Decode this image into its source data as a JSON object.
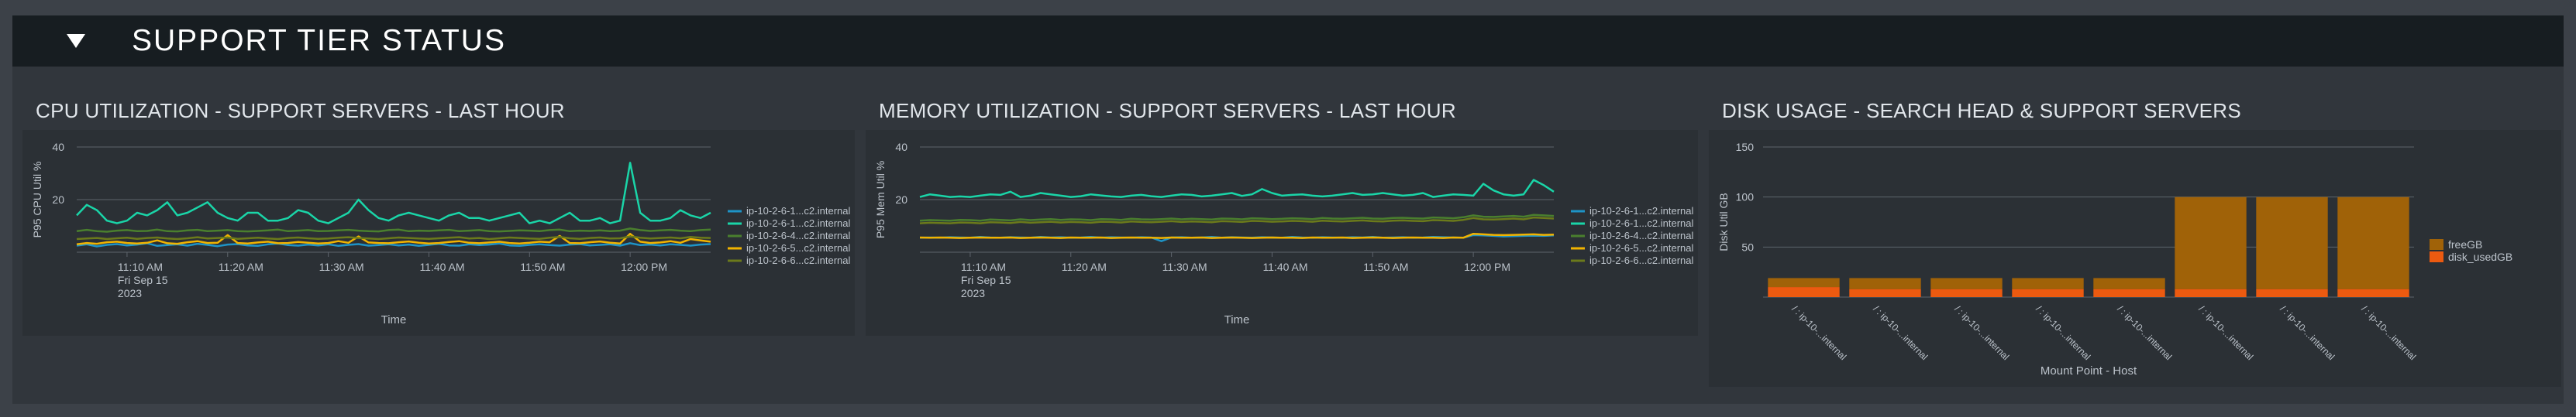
{
  "section": {
    "title": "SUPPORT TIER STATUS",
    "toggle_icon": "triangle-down-icon"
  },
  "panels": [
    {
      "title": "CPU UTILIZATION - SUPPORT SERVERS - LAST HOUR",
      "chart_data": {
        "type": "line",
        "title": "",
        "xlabel": "Time",
        "ylabel": "P95 CPU Util %",
        "ylim": [
          0,
          40
        ],
        "yticks": [
          20,
          40
        ],
        "grid": true,
        "legend": "right",
        "x_range": [
          "11:05",
          "12:08"
        ],
        "x_ticks": [
          {
            "t": "11:10",
            "label": "11:10 AM",
            "sub1": "Fri Sep 15",
            "sub2": "2023"
          },
          {
            "t": "11:20",
            "label": "11:20 AM"
          },
          {
            "t": "11:30",
            "label": "11:30 AM"
          },
          {
            "t": "11:40",
            "label": "11:40 AM"
          },
          {
            "t": "11:50",
            "label": "11:50 AM"
          },
          {
            "t": "12:00",
            "label": "12:00 PM"
          }
        ],
        "series": [
          {
            "name": "ip-10-2-6-1...c2.internal",
            "color": "#1e93c6",
            "values": [
              2.5,
              3.0,
              2.2,
              2.8,
              3.1,
              2.6,
              2.9,
              3.4,
              2.4,
              2.7,
              3.0,
              2.5,
              3.2,
              2.8,
              2.3,
              2.9,
              3.1,
              2.6,
              2.4,
              3.0,
              3.3,
              2.7,
              2.5,
              2.9,
              2.6,
              3.0,
              2.4,
              2.8,
              3.1,
              2.5,
              2.7,
              3.0,
              2.6,
              2.9,
              2.4,
              2.8,
              3.2,
              2.6,
              2.5,
              3.0,
              2.7,
              2.9,
              3.3,
              2.6,
              2.4,
              2.8,
              3.0,
              2.7,
              2.5,
              2.9,
              3.1,
              2.6,
              2.8,
              3.0,
              2.5,
              3.4,
              2.7,
              2.9,
              2.6,
              3.0,
              2.8,
              2.5,
              2.9,
              3.1
            ]
          },
          {
            "name": "ip-10-2-6-1...c2.internal",
            "color": "#1ad5a8",
            "values": [
              14,
              18,
              16,
              12,
              11,
              12,
              15,
              14,
              16,
              19,
              14,
              15,
              17,
              19,
              15,
              13,
              12,
              15,
              15,
              12,
              12,
              13,
              16,
              15,
              12,
              11,
              13,
              15,
              20,
              16,
              13,
              12,
              14,
              15,
              14,
              13,
              12,
              14,
              15,
              13,
              13,
              12,
              13,
              14,
              15,
              11,
              12,
              11,
              13,
              15,
              12,
              12,
              13,
              11,
              12,
              34,
              15,
              12,
              12,
              13,
              16,
              14,
              13,
              15
            ]
          },
          {
            "name": "ip-10-2-6-4...c2.internal",
            "color": "#4a7f2e",
            "values": [
              8,
              8.5,
              8,
              7.8,
              8.2,
              8.4,
              8,
              8.1,
              8.6,
              8,
              7.9,
              8.3,
              8.5,
              8,
              8.2,
              8.4,
              8,
              7.9,
              8.1,
              8.3,
              8.6,
              8,
              8.2,
              8.4,
              8,
              8.1,
              8.3,
              8.5,
              8.2,
              8,
              7.9,
              8.4,
              8.6,
              8,
              8.2,
              8.1,
              8.3,
              8.5,
              8,
              8.2,
              8.4,
              8,
              7.9,
              8.1,
              8.3,
              8.2,
              8,
              8.4,
              8.6,
              8,
              8.2,
              8.1,
              8.3,
              8,
              8.2,
              9,
              8.4,
              8.1,
              8.3,
              8.5,
              8.2,
              8,
              8.4,
              8.6
            ]
          },
          {
            "name": "ip-10-2-6-5...c2.internal",
            "color": "#f1b300",
            "values": [
              3,
              3.5,
              3.2,
              3.8,
              4,
              3.5,
              3.3,
              3.6,
              4.5,
              3.4,
              3.2,
              3.8,
              4.2,
              3.5,
              3.6,
              6.5,
              3.5,
              3.3,
              3.7,
              4.0,
              3.4,
              3.5,
              3.9,
              3.6,
              3.3,
              3.5,
              4.2,
              3.6,
              6.0,
              3.7,
              3.5,
              3.4,
              3.8,
              4.1,
              3.6,
              3.3,
              3.5,
              3.9,
              4.2,
              3.6,
              3.4,
              3.7,
              4.0,
              3.5,
              3.3,
              3.6,
              4.0,
              3.8,
              6.2,
              3.5,
              3.4,
              3.8,
              4.1,
              3.6,
              3.3,
              7.0,
              4.0,
              3.5,
              3.7,
              4.2,
              3.6,
              5.0,
              4.5,
              4.0
            ]
          },
          {
            "name": "ip-10-2-6-6...c2.internal",
            "color": "#6b7a1b",
            "values": [
              5,
              5.2,
              5.4,
              5,
              5.3,
              5.5,
              5.1,
              5.4,
              5.6,
              5.2,
              5,
              5.3,
              5.7,
              5.2,
              5.4,
              5.6,
              5.1,
              5.3,
              5.5,
              5.2,
              5.0,
              5.4,
              5.6,
              5.3,
              5.1,
              5.2,
              5.5,
              5.7,
              5.4,
              5.2,
              5.0,
              5.3,
              5.6,
              5.4,
              5.2,
              5.1,
              5.3,
              5.5,
              5.7,
              5.2,
              5.4,
              5.0,
              5.3,
              5.6,
              5.4,
              5.2,
              5.1,
              5.5,
              5.8,
              5.3,
              5.1,
              5.4,
              5.6,
              5.2,
              5.3,
              6.0,
              5.5,
              5.2,
              5.4,
              5.6,
              5.3,
              5.8,
              5.5,
              5.4
            ]
          }
        ]
      }
    },
    {
      "title": "MEMORY UTILIZATION - SUPPORT SERVERS - LAST HOUR",
      "chart_data": {
        "type": "line",
        "title": "",
        "xlabel": "Time",
        "ylabel": "P95 Mem Util %",
        "ylim": [
          0,
          40
        ],
        "yticks": [
          20,
          40
        ],
        "grid": true,
        "legend": "right",
        "x_range": [
          "11:05",
          "12:08"
        ],
        "x_ticks": [
          {
            "t": "11:10",
            "label": "11:10 AM",
            "sub1": "Fri Sep 15",
            "sub2": "2023"
          },
          {
            "t": "11:20",
            "label": "11:20 AM"
          },
          {
            "t": "11:30",
            "label": "11:30 AM"
          },
          {
            "t": "11:40",
            "label": "11:40 AM"
          },
          {
            "t": "11:50",
            "label": "11:50 AM"
          },
          {
            "t": "12:00",
            "label": "12:00 PM"
          }
        ],
        "series": [
          {
            "name": "ip-10-2-6-1...c2.internal",
            "color": "#1e93c6",
            "values": [
              5.5,
              5.6,
              5.5,
              5.7,
              5.6,
              5.5,
              5.8,
              5.6,
              5.5,
              5.7,
              5.6,
              5.5,
              5.8,
              5.6,
              5.7,
              5.5,
              5.6,
              5.8,
              5.5,
              5.7,
              5.6,
              5.5,
              5.7,
              5.6,
              4.2,
              5.6,
              5.7,
              5.5,
              5.6,
              5.8,
              5.5,
              5.7,
              5.6,
              5.5,
              5.7,
              5.6,
              5.5,
              5.8,
              5.6,
              5.5,
              5.7,
              5.6,
              5.5,
              5.7,
              5.6,
              5.8,
              5.5,
              5.6,
              5.7,
              5.5,
              5.6,
              5.8,
              5.7,
              5.6,
              5.5,
              6.5,
              6.4,
              6.2,
              6.0,
              6.1,
              6.2,
              6.3,
              6.2,
              6.4
            ]
          },
          {
            "name": "ip-10-2-6-1...c2.internal",
            "color": "#1ad5a8",
            "values": [
              21,
              22,
              21.5,
              21,
              21.2,
              21,
              21.5,
              22,
              21.8,
              23,
              21,
              21.5,
              22.5,
              22,
              21.5,
              21,
              21.3,
              22,
              21.6,
              21.2,
              21,
              21.5,
              21.8,
              21.3,
              21,
              21.5,
              22,
              21.8,
              21.2,
              21.5,
              22,
              22.5,
              21.4,
              22,
              24,
              22.5,
              21.5,
              21.8,
              22,
              21.5,
              21.2,
              21.5,
              22,
              22.5,
              21.8,
              22,
              22.5,
              22,
              21.5,
              21.8,
              22.5,
              21,
              21.5,
              22,
              21.8,
              21.5,
              26,
              23.5,
              22,
              21.5,
              22,
              27.5,
              25.5,
              23
            ]
          },
          {
            "name": "ip-10-2-6-4...c2.internal",
            "color": "#4a7f2e",
            "values": [
              12,
              12.2,
              12.1,
              12,
              12.3,
              12.2,
              12,
              12.4,
              12.3,
              12.1,
              12.5,
              12.2,
              12.4,
              12.6,
              12.3,
              12.5,
              12.4,
              12.2,
              12.6,
              12.5,
              12.3,
              12.7,
              12.5,
              12.4,
              12.6,
              12.8,
              12.5,
              12.7,
              12.6,
              12.4,
              12.8,
              12.7,
              12.5,
              12.9,
              12.8,
              12.6,
              12.7,
              12.9,
              12.8,
              12.6,
              13,
              12.8,
              12.7,
              12.9,
              13.1,
              12.8,
              12.7,
              13,
              13.1,
              12.9,
              12.8,
              13.2,
              13.1,
              12.9,
              13.3,
              14,
              13.5,
              13.4,
              13.6,
              13.8,
              13.5,
              14.2,
              14,
              13.8
            ]
          },
          {
            "name": "ip-10-2-6-5...c2.internal",
            "color": "#f1b300",
            "values": [
              5.6,
              5.5,
              5.6,
              5.5,
              5.4,
              5.5,
              5.6,
              5.5,
              5.5,
              5.6,
              5.4,
              5.5,
              5.6,
              5.5,
              5.4,
              5.6,
              5.5,
              5.5,
              5.6,
              5.4,
              5.5,
              5.6,
              5.5,
              5.5,
              5.4,
              5.6,
              5.5,
              5.5,
              5.6,
              5.4,
              5.5,
              5.6,
              5.5,
              5.4,
              5.5,
              5.6,
              5.5,
              5.5,
              5.4,
              5.6,
              5.5,
              5.5,
              5.6,
              5.4,
              5.5,
              5.6,
              5.5,
              5.4,
              5.5,
              5.6,
              5.5,
              5.5,
              5.4,
              5.6,
              5.5,
              7.0,
              6.8,
              6.6,
              6.5,
              6.6,
              6.7,
              6.8,
              6.6,
              6.7
            ]
          },
          {
            "name": "ip-10-2-6-6...c2.internal",
            "color": "#6b7a1b",
            "values": [
              11,
              11.2,
              11.1,
              11,
              11.3,
              11.2,
              11,
              11.4,
              11.3,
              11.1,
              11.5,
              11.2,
              11.4,
              11.6,
              11.3,
              11.5,
              11.4,
              11.2,
              11.6,
              11.5,
              11.3,
              11.7,
              11.5,
              11.4,
              11.6,
              11.8,
              11.5,
              11.7,
              11.6,
              11.4,
              11.8,
              11.7,
              11.5,
              11.9,
              11.8,
              11.6,
              11.7,
              11.9,
              11.8,
              11.6,
              12,
              11.8,
              11.7,
              11.9,
              12.1,
              11.8,
              11.7,
              12,
              12.1,
              11.9,
              11.8,
              12.2,
              12.1,
              11.9,
              12.3,
              13,
              12.5,
              12.4,
              12.6,
              12.8,
              12.5,
              13.2,
              13,
              12.8
            ]
          }
        ]
      }
    },
    {
      "title": "DISK USAGE - SEARCH HEAD & SUPPORT SERVERS",
      "chart_data": {
        "type": "bar",
        "stacked": true,
        "title": "",
        "xlabel": "Mount Point - Host",
        "ylabel": "Disk Util GB",
        "ylim": [
          0,
          150
        ],
        "yticks": [
          50,
          100,
          150
        ],
        "grid": true,
        "legend": "right",
        "categories": [
          "/ : ip-10-...internal",
          "/ : ip-10-...internal",
          "/ : ip-10-...internal",
          "/ : ip-10-...internal",
          "/ : ip-10-...internal",
          "/ : ip-10-...internal",
          "/ : ip-10-...internal",
          "/ : ip-10-...internal"
        ],
        "series": [
          {
            "name": "disk_usedGB",
            "color": "#ec5a10",
            "values": [
              10,
              8,
              8,
              8,
              8,
              8,
              8,
              8
            ]
          },
          {
            "name": "freeGB",
            "color": "#a06208",
            "values": [
              9,
              11,
              11,
              11,
              11,
              92,
              92,
              92
            ]
          }
        ],
        "legend_order": [
          "freeGB",
          "disk_usedGB"
        ]
      }
    }
  ]
}
